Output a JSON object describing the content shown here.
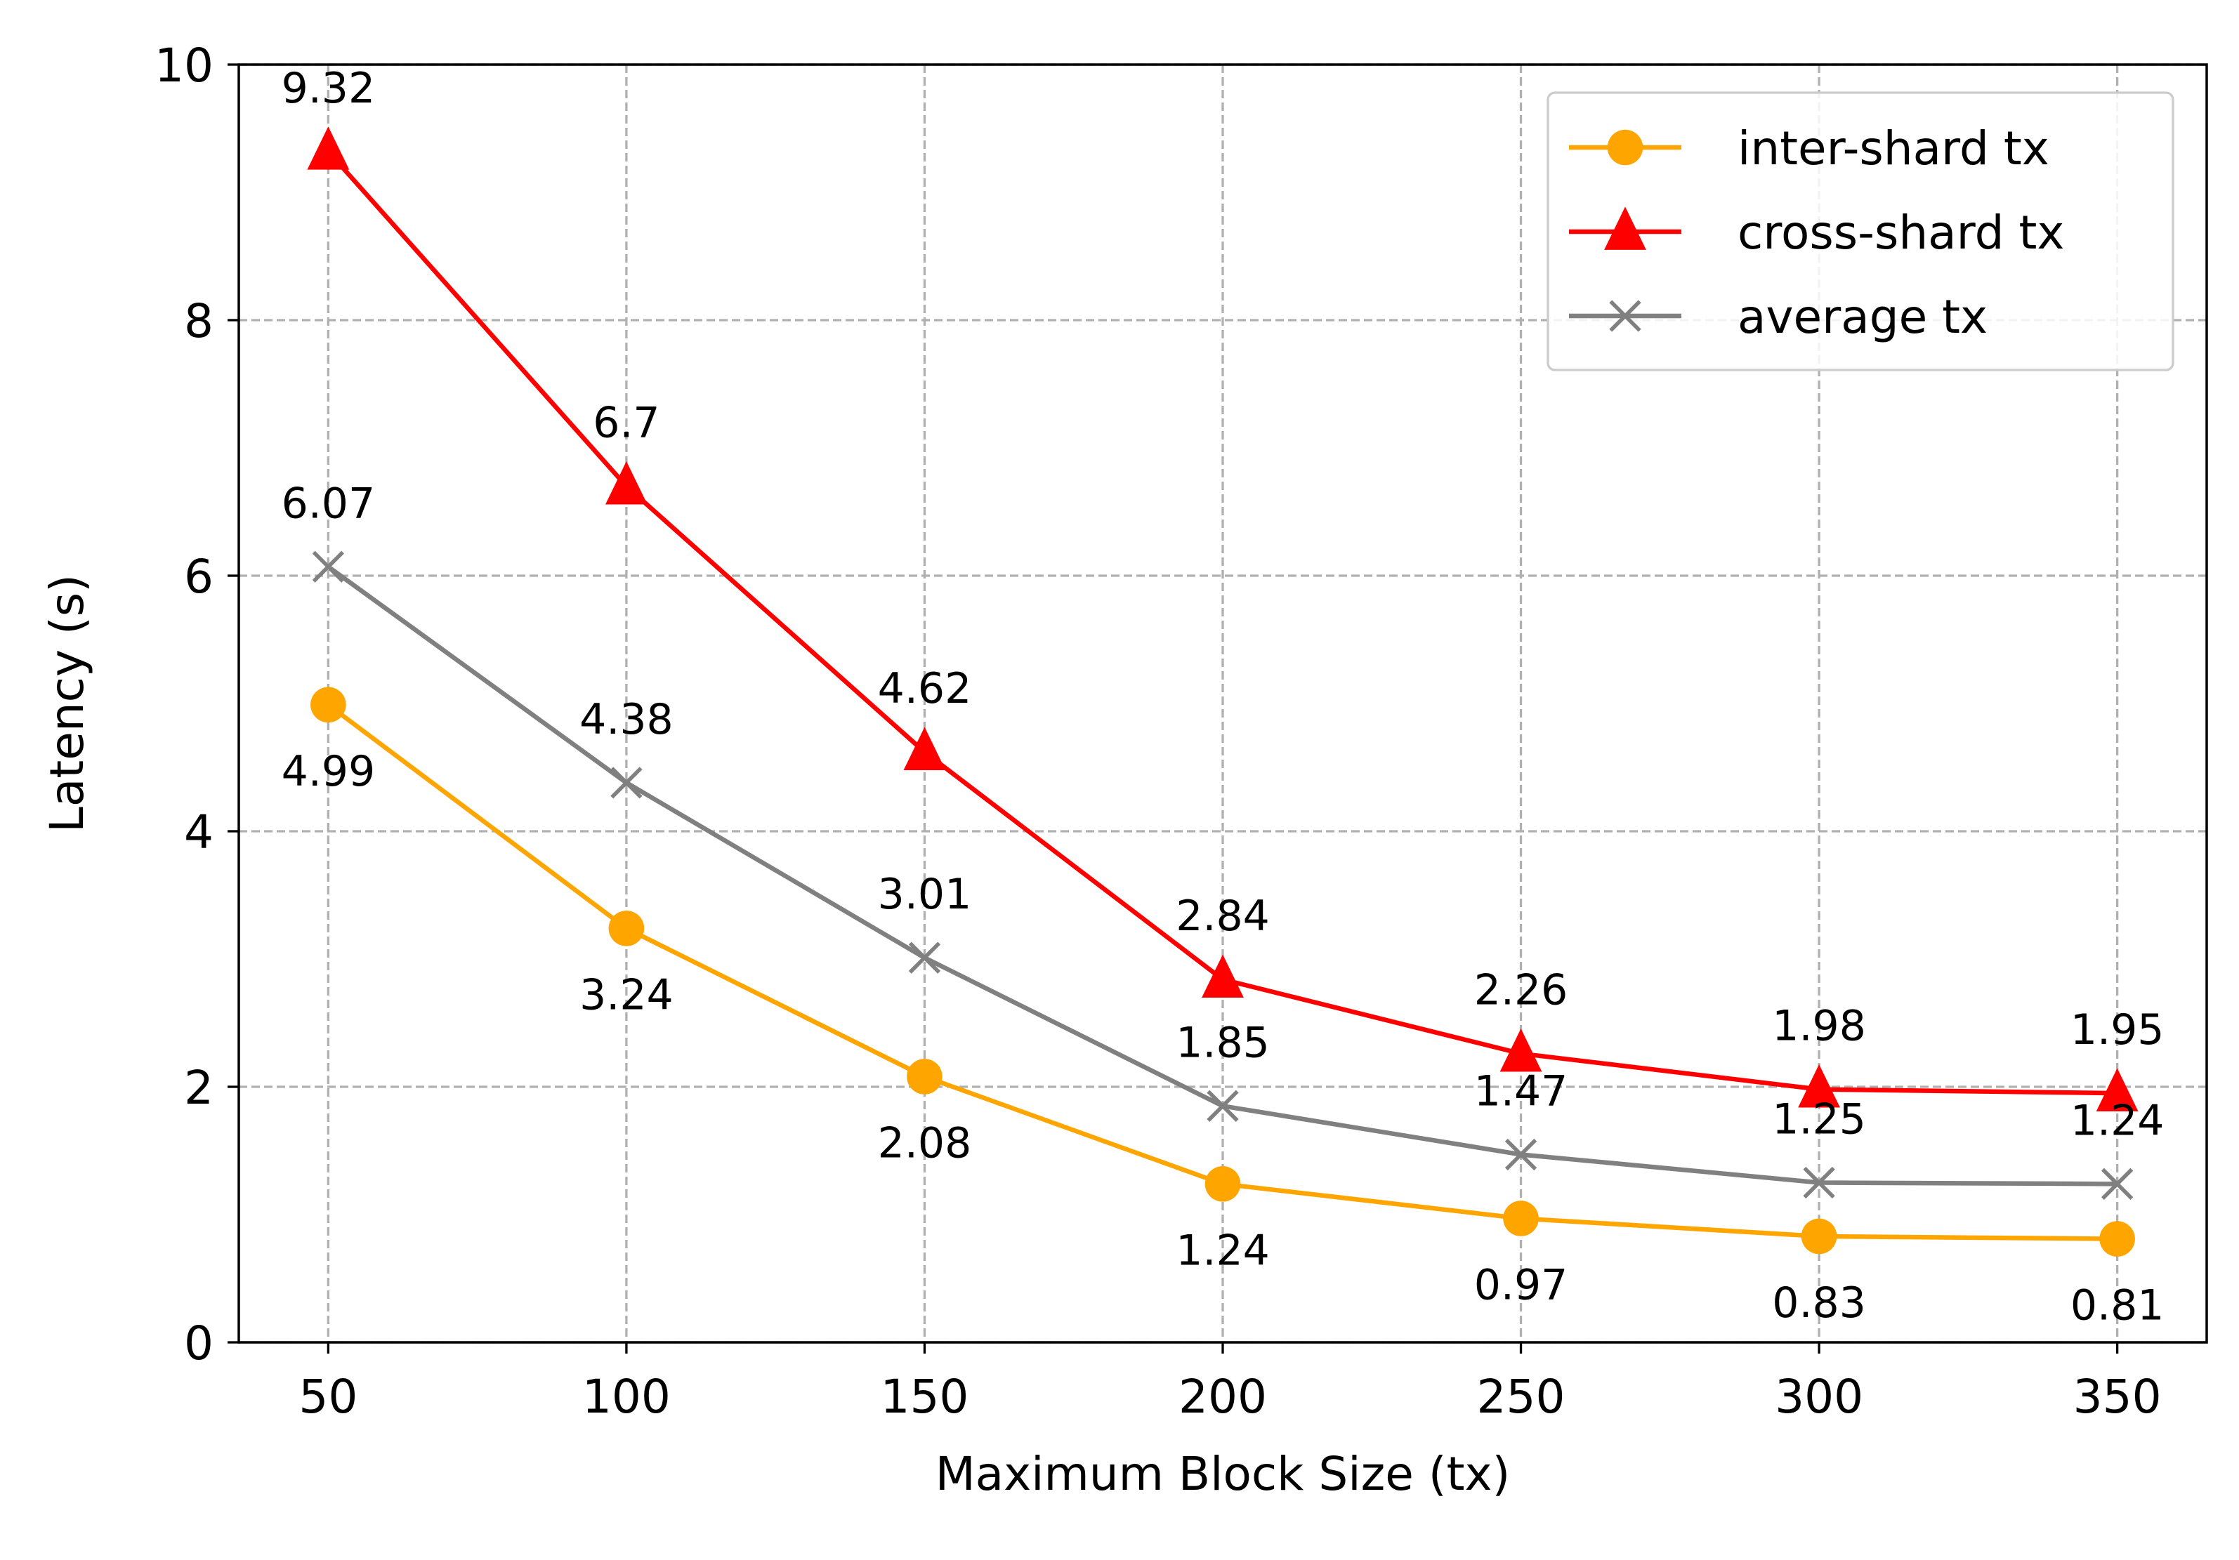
{
  "chart_data": {
    "type": "line",
    "title": "",
    "xlabel": "Maximum Block Size (tx)",
    "ylabel": "Latency (s)",
    "x": [
      50,
      100,
      150,
      200,
      250,
      300,
      350
    ],
    "x_tick_labels": [
      "50",
      "100",
      "150",
      "200",
      "250",
      "300",
      "350"
    ],
    "y_tick_labels": [
      "0",
      "2",
      "4",
      "6",
      "8",
      "10"
    ],
    "y_ticks": [
      0,
      2,
      4,
      6,
      8,
      10
    ],
    "xlim": [
      35,
      365
    ],
    "ylim": [
      0,
      10
    ],
    "grid": true,
    "legend_position": "top-right",
    "series": [
      {
        "name": "inter-shard tx",
        "color": "#FFA500",
        "marker": "circle",
        "label_position": "below",
        "values": [
          4.99,
          3.24,
          2.08,
          1.24,
          0.97,
          0.83,
          0.81
        ],
        "data_labels": [
          "4.99",
          "3.24",
          "2.08",
          "1.24",
          "0.97",
          "0.83",
          "0.81"
        ]
      },
      {
        "name": "cross-shard tx",
        "color": "#FF0000",
        "marker": "triangle",
        "label_position": "above",
        "values": [
          9.32,
          6.7,
          4.62,
          2.84,
          2.26,
          1.98,
          1.95
        ],
        "data_labels": [
          "9.32",
          "6.7",
          "4.62",
          "2.84",
          "2.26",
          "1.98",
          "1.95"
        ]
      },
      {
        "name": "average tx",
        "color": "#808080",
        "marker": "x",
        "label_position": "above",
        "values": [
          6.07,
          4.38,
          3.01,
          1.85,
          1.47,
          1.25,
          1.24
        ],
        "data_labels": [
          "6.07",
          "4.38",
          "3.01",
          "1.85",
          "1.47",
          "1.25",
          "1.24"
        ]
      }
    ]
  }
}
